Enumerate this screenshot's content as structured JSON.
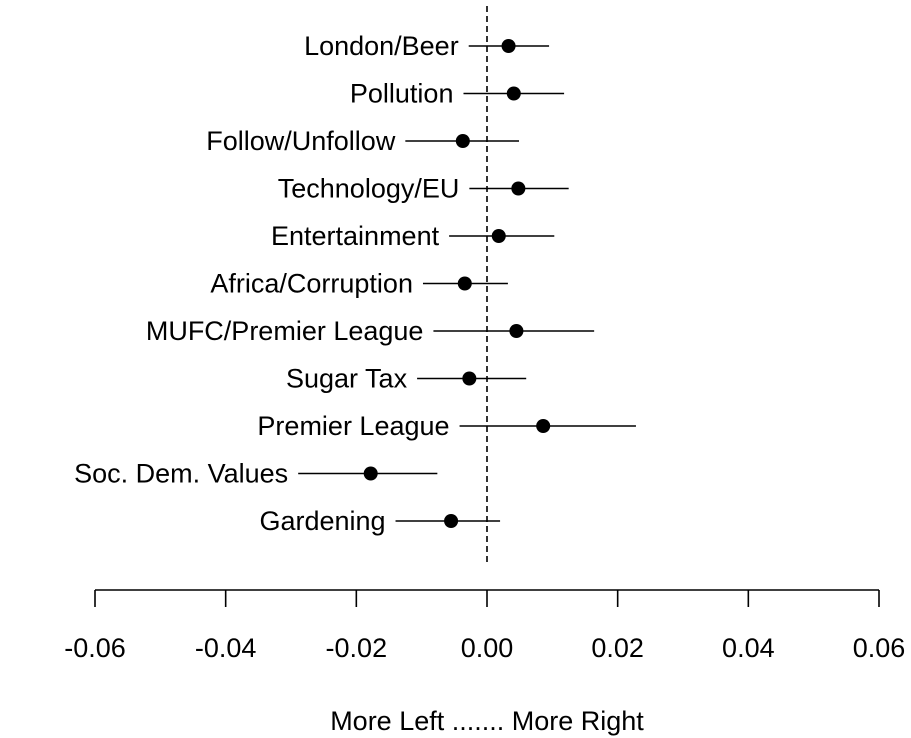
{
  "chart_data": {
    "type": "scatter",
    "title": "",
    "xlabel": "More Left ....... More Right",
    "ylabel": "",
    "xlim": [
      -0.06,
      0.06
    ],
    "x_ticks": [
      -0.06,
      -0.04,
      -0.02,
      0.0,
      0.02,
      0.04,
      0.06
    ],
    "x_tick_labels": [
      "-0.06",
      "-0.04",
      "-0.02",
      "0.00",
      "0.02",
      "0.04",
      "0.06"
    ],
    "reference_line": 0.0,
    "grid": false,
    "legend": "none",
    "colors": {
      "point": "#000000",
      "line": "#000000"
    },
    "categories": [
      "London/Beer",
      "Pollution",
      "Follow/Unfollow",
      "Technology/EU",
      "Entertainment",
      "Africa/Corruption",
      "MUFC/Premier League",
      "Sugar Tax",
      "Premier League",
      "Soc. Dem. Values",
      "Gardening"
    ],
    "estimates": [
      0.0033,
      0.0041,
      -0.0037,
      0.0048,
      0.0018,
      -0.0034,
      0.0045,
      -0.0027,
      0.0086,
      -0.0178,
      -0.0055
    ],
    "ci_low": [
      -0.0028,
      -0.0036,
      -0.0125,
      -0.0027,
      -0.0058,
      -0.0098,
      -0.0082,
      -0.0107,
      -0.0042,
      -0.0289,
      -0.014
    ],
    "ci_high": [
      0.0095,
      0.0118,
      0.0049,
      0.0125,
      0.0103,
      0.0032,
      0.0164,
      0.006,
      0.0228,
      -0.0076,
      0.002
    ]
  }
}
